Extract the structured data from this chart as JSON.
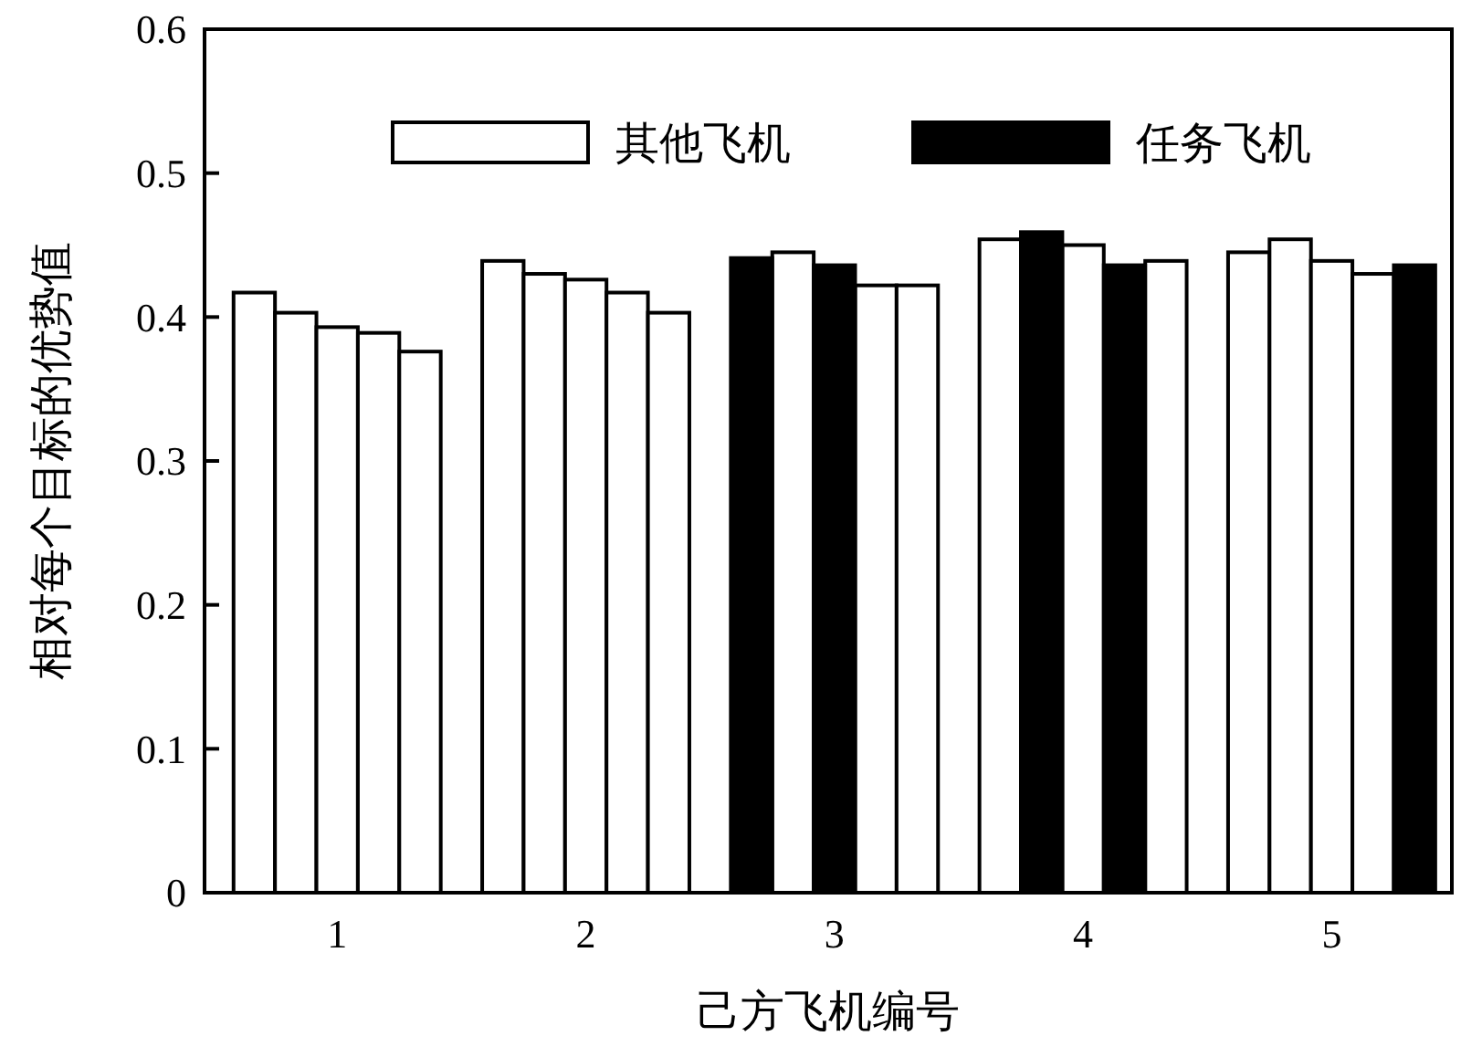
{
  "chart_data": {
    "type": "bar",
    "xlabel": "己方飞机编号",
    "ylabel": "相对每个目标的优势值",
    "categories": [
      null,
      null,
      "1",
      null,
      null,
      null,
      null,
      null,
      "2",
      null,
      null,
      null,
      null,
      null,
      "3",
      null,
      null,
      null,
      null,
      null,
      "4",
      null,
      null,
      null,
      null,
      null,
      "5",
      null,
      null
    ],
    "ylim": [
      0,
      0.6
    ],
    "yticks": [
      0,
      0.1,
      0.2,
      0.3,
      0.4,
      0.5,
      0.6
    ],
    "grid": false,
    "legend": "top right",
    "series": [
      {
        "name": "其他飞机",
        "color": "#ffffff",
        "values": [
          0.417,
          0.403,
          0.393,
          0.389,
          0.376,
          null,
          0.439,
          0.43,
          0.426,
          0.417,
          0.403,
          null,
          null,
          0.445,
          null,
          0.422,
          0.422,
          null,
          0.454,
          null,
          0.45,
          null,
          0.439,
          null,
          0.445,
          0.454,
          0.439,
          0.43,
          null
        ]
      },
      {
        "name": "任务飞机",
        "color": "#000000",
        "values": [
          null,
          null,
          null,
          null,
          null,
          null,
          null,
          null,
          null,
          null,
          null,
          null,
          0.441,
          null,
          0.436,
          null,
          null,
          null,
          null,
          0.459,
          null,
          0.436,
          null,
          null,
          null,
          null,
          null,
          null,
          0.436
        ]
      }
    ]
  }
}
